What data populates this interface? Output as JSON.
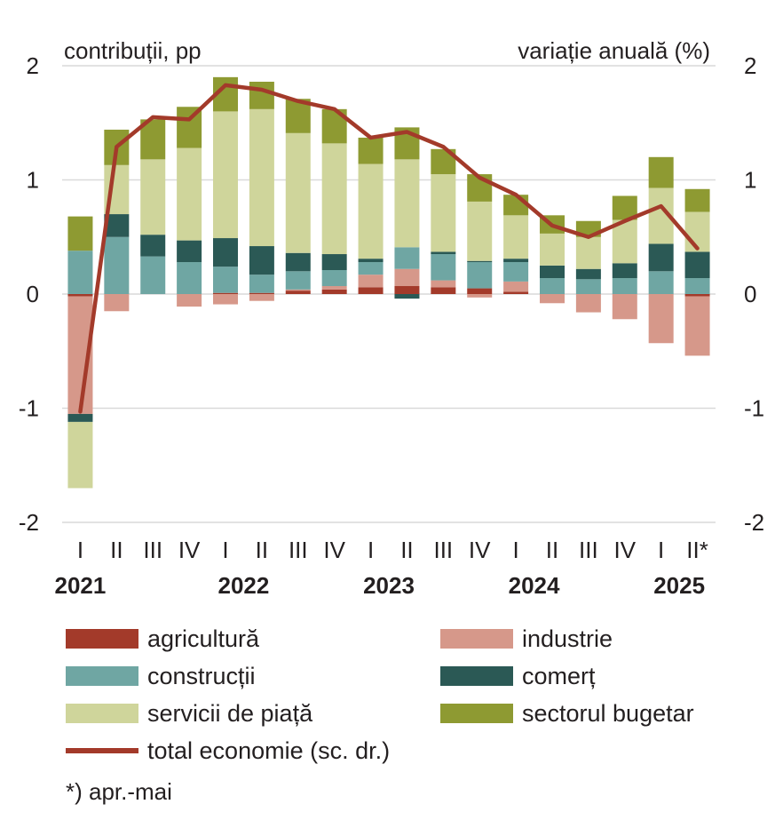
{
  "chart_data": {
    "type": "bar",
    "stacked": true,
    "ylabel_left": "contribuții, pp",
    "ylabel_right": "variație anuală (%)",
    "ylim": [
      -2,
      2
    ],
    "yticks_left": [
      "2",
      "1",
      "0",
      "-1",
      "-2"
    ],
    "yticks_right": [
      "2",
      "1",
      "0",
      "-1",
      "-2"
    ],
    "quarters": [
      "I",
      "II",
      "III",
      "IV",
      "I",
      "II",
      "III",
      "IV",
      "I",
      "II",
      "III",
      "IV",
      "I",
      "II",
      "III",
      "IV",
      "I",
      "II*"
    ],
    "years": [
      {
        "label": "2021",
        "index": 0
      },
      {
        "label": "2022",
        "index": 4.5
      },
      {
        "label": "2023",
        "index": 8.5
      },
      {
        "label": "2024",
        "index": 12.5
      },
      {
        "label": "2025",
        "index": 16.5
      }
    ],
    "grid": true,
    "legend_position": "bottom",
    "series": [
      {
        "name": "agricultură",
        "color": "#a33a2a",
        "values": [
          -0.02,
          0.0,
          0.0,
          0.0,
          0.01,
          0.01,
          0.03,
          0.04,
          0.06,
          0.07,
          0.06,
          0.05,
          0.02,
          0.0,
          0.0,
          0.0,
          0.0,
          -0.02
        ]
      },
      {
        "name": "industrie",
        "color": "#d6988a",
        "values": [
          -1.03,
          -0.15,
          0.0,
          -0.11,
          -0.09,
          -0.06,
          0.01,
          0.03,
          0.11,
          0.15,
          0.06,
          -0.03,
          0.09,
          -0.08,
          -0.16,
          -0.22,
          -0.43,
          -0.52
        ]
      },
      {
        "name": "construcții",
        "color": "#6fa6a3",
        "values": [
          0.38,
          0.5,
          0.33,
          0.28,
          0.23,
          0.16,
          0.16,
          0.14,
          0.11,
          0.19,
          0.23,
          0.23,
          0.17,
          0.14,
          0.13,
          0.14,
          0.2,
          0.14
        ]
      },
      {
        "name": "comerț",
        "color": "#2b5955",
        "values": [
          -0.07,
          0.2,
          0.19,
          0.19,
          0.25,
          0.25,
          0.16,
          0.14,
          0.03,
          -0.04,
          0.02,
          0.01,
          0.03,
          0.11,
          0.09,
          0.13,
          0.24,
          0.23
        ]
      },
      {
        "name": "servicii de piață",
        "color": "#cfd59b",
        "values": [
          -0.58,
          0.43,
          0.66,
          0.81,
          1.11,
          1.2,
          1.05,
          0.97,
          0.83,
          0.77,
          0.68,
          0.52,
          0.38,
          0.28,
          0.28,
          0.38,
          0.49,
          0.35
        ]
      },
      {
        "name": "sectorul bugetar",
        "color": "#8e9a32",
        "values": [
          0.3,
          0.31,
          0.35,
          0.36,
          0.3,
          0.24,
          0.3,
          0.3,
          0.23,
          0.28,
          0.22,
          0.24,
          0.18,
          0.16,
          0.14,
          0.21,
          0.27,
          0.2
        ]
      }
    ],
    "line": {
      "name": "total economie (sc. dr.)",
      "color": "#a33a2a",
      "values": [
        -1.03,
        1.29,
        1.55,
        1.53,
        1.83,
        1.79,
        1.69,
        1.62,
        1.37,
        1.42,
        1.29,
        1.02,
        0.87,
        0.6,
        0.5,
        0.64,
        0.77,
        0.4
      ]
    },
    "footnote": "*) apr.-mai"
  }
}
